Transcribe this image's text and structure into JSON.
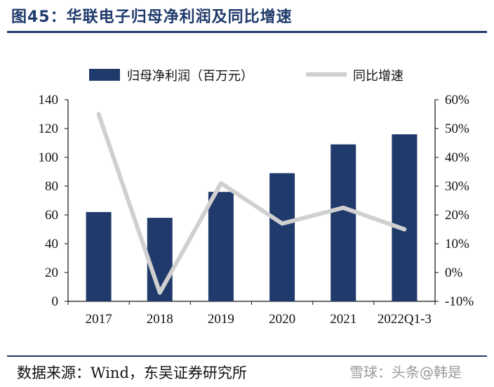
{
  "header": {
    "title": "图45：华联电子归母净利润及同比增速"
  },
  "footer": {
    "source": "数据来源：Wind，东吴证券研究所",
    "watermark": "雪球：头条@韩是"
  },
  "colors": {
    "bar": "#1f3a6b",
    "line": "#d0d0d0",
    "title": "#1f3a6b"
  },
  "chart_data": {
    "type": "bar",
    "categories": [
      "2017",
      "2018",
      "2019",
      "2020",
      "2021",
      "2022Q1-3"
    ],
    "series": [
      {
        "name": "归母净利润（百万元）",
        "type": "bar",
        "axis": "left",
        "values": [
          62,
          58,
          76,
          89,
          109,
          116
        ]
      },
      {
        "name": "同比增速",
        "type": "line",
        "axis": "right",
        "values": [
          55,
          -7,
          31,
          17,
          22.5,
          15
        ]
      }
    ],
    "left_axis": {
      "ylim": [
        0,
        140
      ],
      "ticks": [
        "0",
        "20",
        "40",
        "60",
        "80",
        "100",
        "120",
        "140"
      ]
    },
    "right_axis": {
      "ylim": [
        -10,
        60
      ],
      "ticks": [
        "-10%",
        "0%",
        "10%",
        "20%",
        "30%",
        "40%",
        "50%",
        "60%"
      ]
    },
    "legend_position": "top-center",
    "grid": false
  }
}
